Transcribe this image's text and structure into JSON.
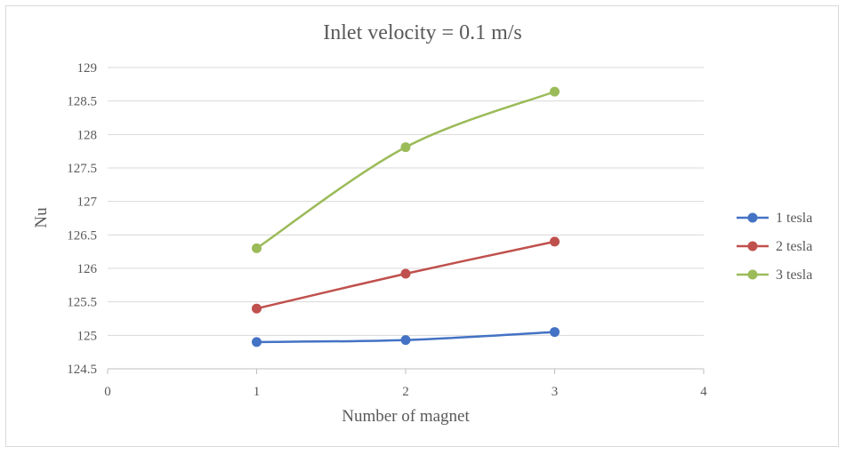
{
  "chart_data": {
    "type": "line",
    "title": "Inlet velocity = 0.1 m/s",
    "xlabel": "Number of magnet",
    "ylabel": "Nu",
    "xlim": [
      0,
      4
    ],
    "ylim": [
      124.5,
      129
    ],
    "x_ticks": [
      "0",
      "1",
      "2",
      "3",
      "4"
    ],
    "y_ticks": [
      "124.5",
      "125",
      "125.5",
      "126",
      "126.5",
      "127",
      "127.5",
      "128",
      "128.5",
      "129"
    ],
    "x": [
      1,
      2,
      3
    ],
    "series": [
      {
        "name": "1 tesla",
        "color": "#4472c4",
        "values": [
          124.9,
          124.93,
          125.05
        ]
      },
      {
        "name": "2 tesla",
        "color": "#c0504d",
        "values": [
          125.4,
          125.92,
          126.4
        ]
      },
      {
        "name": "3 tesla",
        "color": "#9bbb59",
        "values": [
          126.3,
          127.81,
          128.64
        ]
      }
    ],
    "grid": "horizontal",
    "legend_position": "right",
    "smoothed": true
  }
}
